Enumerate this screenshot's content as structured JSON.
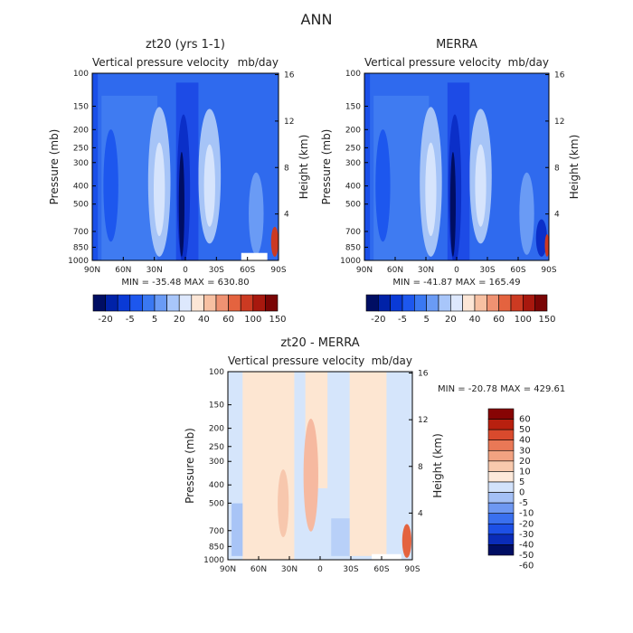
{
  "main_title": "ANN",
  "colors": {
    "levels_15": [
      "#000e63",
      "#0022a8",
      "#0a3ad6",
      "#1d57ee",
      "#3a78f2",
      "#6a9bf5",
      "#a8c6fa",
      "#dde8fd",
      "#fce6d6",
      "#f7c0a2",
      "#ef9272",
      "#e4633f",
      "#cc3a22",
      "#a8180e",
      "#7a0505"
    ],
    "diff_levels": [
      "#000e63",
      "#0a2cb8",
      "#1d50e6",
      "#3a70ef",
      "#6e98f2",
      "#a4c0f6",
      "#d2e2fb",
      "#fde9da",
      "#f8c9ad",
      "#f2a281",
      "#e97856",
      "#d94a2d",
      "#b8200f",
      "#870404"
    ],
    "field_blue_dark": "#0b2fc8",
    "field_blue_mid": "#2f6aee",
    "field_blue_light": "#a6c4f7",
    "diff_blue": "#d5e5fb",
    "diff_peach": "#fde6d2"
  },
  "charts": [
    {
      "id": "zt20",
      "title": "zt20 (yrs 1-1)",
      "subtitle_left": "Vertical pressure velocity",
      "subtitle_right": "mb/day",
      "ylabel_left": "Pressure (mb)",
      "ylabel_right": "Height (km)",
      "stats": "MIN = -35.48   MAX = 630.80"
    },
    {
      "id": "merra",
      "title": "MERRA",
      "subtitle_left": "Vertical pressure velocity",
      "subtitle_right": "mb/day",
      "ylabel_left": "Pressure (mb)",
      "ylabel_right": "Height (km)",
      "stats": "MIN = -41.87   MAX = 165.49"
    },
    {
      "id": "diff",
      "title": "zt20 - MERRA",
      "subtitle_left": "Vertical pressure velocity",
      "subtitle_right": "mb/day",
      "ylabel_left": "Pressure (mb)",
      "ylabel_right": "Height (km)",
      "stats": "MIN = -20.78   MAX = 429.61"
    }
  ],
  "chart_data": [
    {
      "type": "heatmap",
      "title": "zt20 (yrs 1-1)",
      "variable": "Vertical pressure velocity",
      "units": "mb/day",
      "x_ticks": [
        "90N",
        "60N",
        "30N",
        "0",
        "30S",
        "60S",
        "90S"
      ],
      "y_ticks": [
        100,
        150,
        200,
        250,
        300,
        400,
        500,
        700,
        850,
        1000
      ],
      "y_ticks_right": [
        16,
        12,
        8,
        4
      ],
      "ylabel_left": "Pressure (mb)",
      "ylabel_right": "Height (km)",
      "y_scale": "log",
      "ylim": [
        1000,
        100
      ],
      "min": -35.48,
      "max": 630.8,
      "colorbar_labels": [
        "-20",
        "-5",
        "5",
        "20",
        "40",
        "60",
        "100",
        "150"
      ],
      "colorbar_orientation": "horizontal"
    },
    {
      "type": "heatmap",
      "title": "MERRA",
      "variable": "Vertical pressure velocity",
      "units": "mb/day",
      "x_ticks": [
        "90N",
        "60N",
        "30N",
        "0",
        "30S",
        "60S",
        "90S"
      ],
      "y_ticks": [
        100,
        150,
        200,
        250,
        300,
        400,
        500,
        700,
        850,
        1000
      ],
      "y_ticks_right": [
        16,
        12,
        8,
        4
      ],
      "ylabel_left": "Pressure (mb)",
      "ylabel_right": "Height (km)",
      "y_scale": "log",
      "ylim": [
        1000,
        100
      ],
      "min": -41.87,
      "max": 165.49,
      "colorbar_labels": [
        "-20",
        "-5",
        "5",
        "20",
        "40",
        "60",
        "100",
        "150"
      ],
      "colorbar_orientation": "horizontal"
    },
    {
      "type": "heatmap",
      "title": "zt20 - MERRA",
      "variable": "Vertical pressure velocity",
      "units": "mb/day",
      "x_ticks": [
        "90N",
        "60N",
        "30N",
        "0",
        "30S",
        "60S",
        "90S"
      ],
      "y_ticks": [
        100,
        150,
        200,
        250,
        300,
        400,
        500,
        700,
        850,
        1000
      ],
      "y_ticks_right": [
        16,
        12,
        8,
        4
      ],
      "ylabel_left": "Pressure (mb)",
      "ylabel_right": "Height (km)",
      "y_scale": "log",
      "ylim": [
        1000,
        100
      ],
      "min": -20.78,
      "max": 429.61,
      "colorbar_labels": [
        "60",
        "50",
        "40",
        "30",
        "20",
        "10",
        "5",
        "0",
        "-5",
        "-10",
        "-20",
        "-30",
        "-40",
        "-50",
        "-60"
      ],
      "colorbar_orientation": "vertical"
    }
  ]
}
